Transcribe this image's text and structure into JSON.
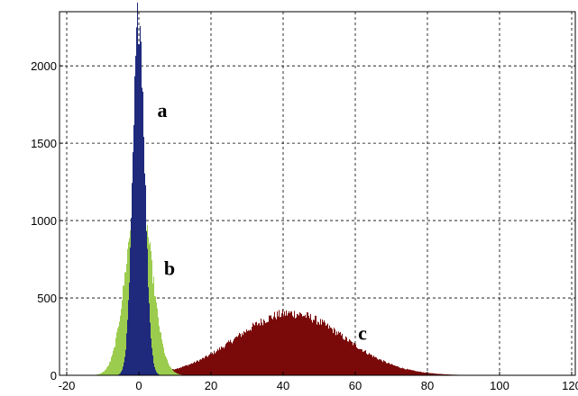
{
  "chart_data": {
    "type": "bar",
    "title": "",
    "xlabel": "",
    "ylabel": "",
    "xlim": [
      -22,
      121
    ],
    "ylim": [
      0,
      2350
    ],
    "grid": true,
    "x_ticks": [
      -20,
      0,
      20,
      40,
      60,
      80,
      100,
      120
    ],
    "x_tick_labels": [
      "-20",
      "0",
      "20",
      "40",
      "60",
      "80",
      "100",
      "120"
    ],
    "y_ticks": [
      0,
      500,
      1000,
      1500,
      2000
    ],
    "y_tick_labels": [
      "0",
      "500",
      "1000",
      "1500",
      "2000"
    ],
    "series": [
      {
        "label": "c",
        "color": "#7a0a0a",
        "distribution": {
          "kind": "gaussian",
          "peak": 400,
          "mean": 42,
          "sigma": 15,
          "range": [
            -5,
            120
          ]
        }
      },
      {
        "label": "b",
        "color": "#9ccc4e",
        "distribution": {
          "kind": "gaussian",
          "peak": 1190,
          "mean": 0,
          "sigma": 3.5,
          "range": [
            -20,
            20
          ]
        }
      },
      {
        "label": "a",
        "color": "#1f2a7c",
        "distribution": {
          "kind": "gaussian",
          "peak": 2330,
          "mean": 0,
          "sigma": 1.6,
          "range": [
            -10,
            10
          ]
        }
      }
    ],
    "annotations": [
      {
        "text": "a",
        "x": 6.5,
        "y": 1670
      },
      {
        "text": "b",
        "x": 8.5,
        "y": 650
      },
      {
        "text": "c",
        "x": 62,
        "y": 230
      }
    ]
  }
}
